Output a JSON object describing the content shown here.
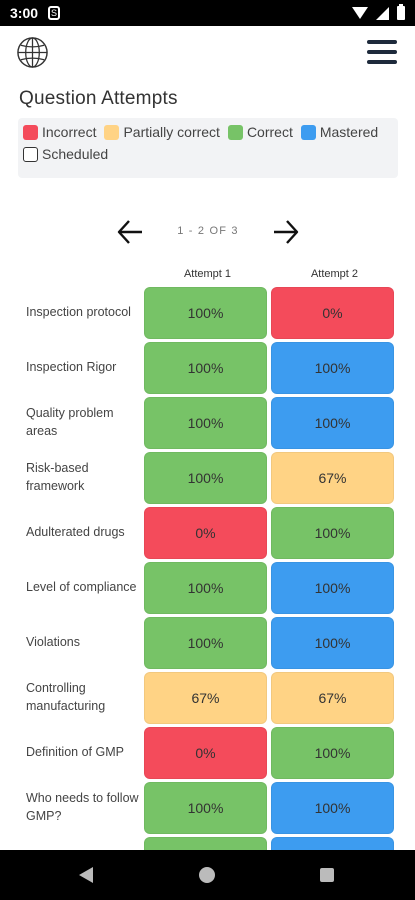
{
  "status_bar": {
    "time": "3:00",
    "notification_glyph": "S"
  },
  "header": {
    "globe_icon": "globe-icon",
    "menu_icon": "hamburger-menu-icon"
  },
  "title": "Question Attempts",
  "legend": [
    {
      "label": "Incorrect",
      "color": "#f44b5b",
      "outline": false
    },
    {
      "label": "Partially correct",
      "color": "#ffd385",
      "outline": false
    },
    {
      "label": "Correct",
      "color": "#77c367",
      "outline": false
    },
    {
      "label": "Mastered",
      "color": "#3d9cf0",
      "outline": false
    },
    {
      "label": "Scheduled",
      "color": "#ffffff",
      "outline": true
    }
  ],
  "pager": {
    "text": "1 - 2 OF 3"
  },
  "columns": [
    "Attempt 1",
    "Attempt 2"
  ],
  "colors": {
    "incorrect": "#f44b5b",
    "partial": "#ffd385",
    "correct": "#77c367",
    "mastered": "#3d9cf0"
  },
  "rows": [
    {
      "label": "Inspection protocol",
      "cells": [
        {
          "value": "100%",
          "status": "correct"
        },
        {
          "value": "0%",
          "status": "incorrect"
        }
      ]
    },
    {
      "label": "Inspection Rigor",
      "cells": [
        {
          "value": "100%",
          "status": "correct"
        },
        {
          "value": "100%",
          "status": "mastered"
        }
      ]
    },
    {
      "label": "Quality problem areas",
      "cells": [
        {
          "value": "100%",
          "status": "correct"
        },
        {
          "value": "100%",
          "status": "mastered"
        }
      ]
    },
    {
      "label": "Risk-based framework",
      "cells": [
        {
          "value": "100%",
          "status": "correct"
        },
        {
          "value": "67%",
          "status": "partial"
        }
      ]
    },
    {
      "label": "Adulterated drugs",
      "cells": [
        {
          "value": "0%",
          "status": "incorrect"
        },
        {
          "value": "100%",
          "status": "correct"
        }
      ]
    },
    {
      "label": "Level of compliance",
      "cells": [
        {
          "value": "100%",
          "status": "correct"
        },
        {
          "value": "100%",
          "status": "mastered"
        }
      ]
    },
    {
      "label": "Violations",
      "cells": [
        {
          "value": "100%",
          "status": "correct"
        },
        {
          "value": "100%",
          "status": "mastered"
        }
      ]
    },
    {
      "label": "Controlling manufacturing",
      "cells": [
        {
          "value": "67%",
          "status": "partial"
        },
        {
          "value": "67%",
          "status": "partial"
        }
      ]
    },
    {
      "label": "Definition of GMP",
      "cells": [
        {
          "value": "0%",
          "status": "incorrect"
        },
        {
          "value": "100%",
          "status": "correct"
        }
      ]
    },
    {
      "label": "Who needs to follow GMP?",
      "cells": [
        {
          "value": "100%",
          "status": "correct"
        },
        {
          "value": "100%",
          "status": "mastered"
        }
      ]
    },
    {
      "label": "",
      "cells": [
        {
          "value": "",
          "status": "correct"
        },
        {
          "value": "",
          "status": "mastered"
        }
      ]
    }
  ]
}
